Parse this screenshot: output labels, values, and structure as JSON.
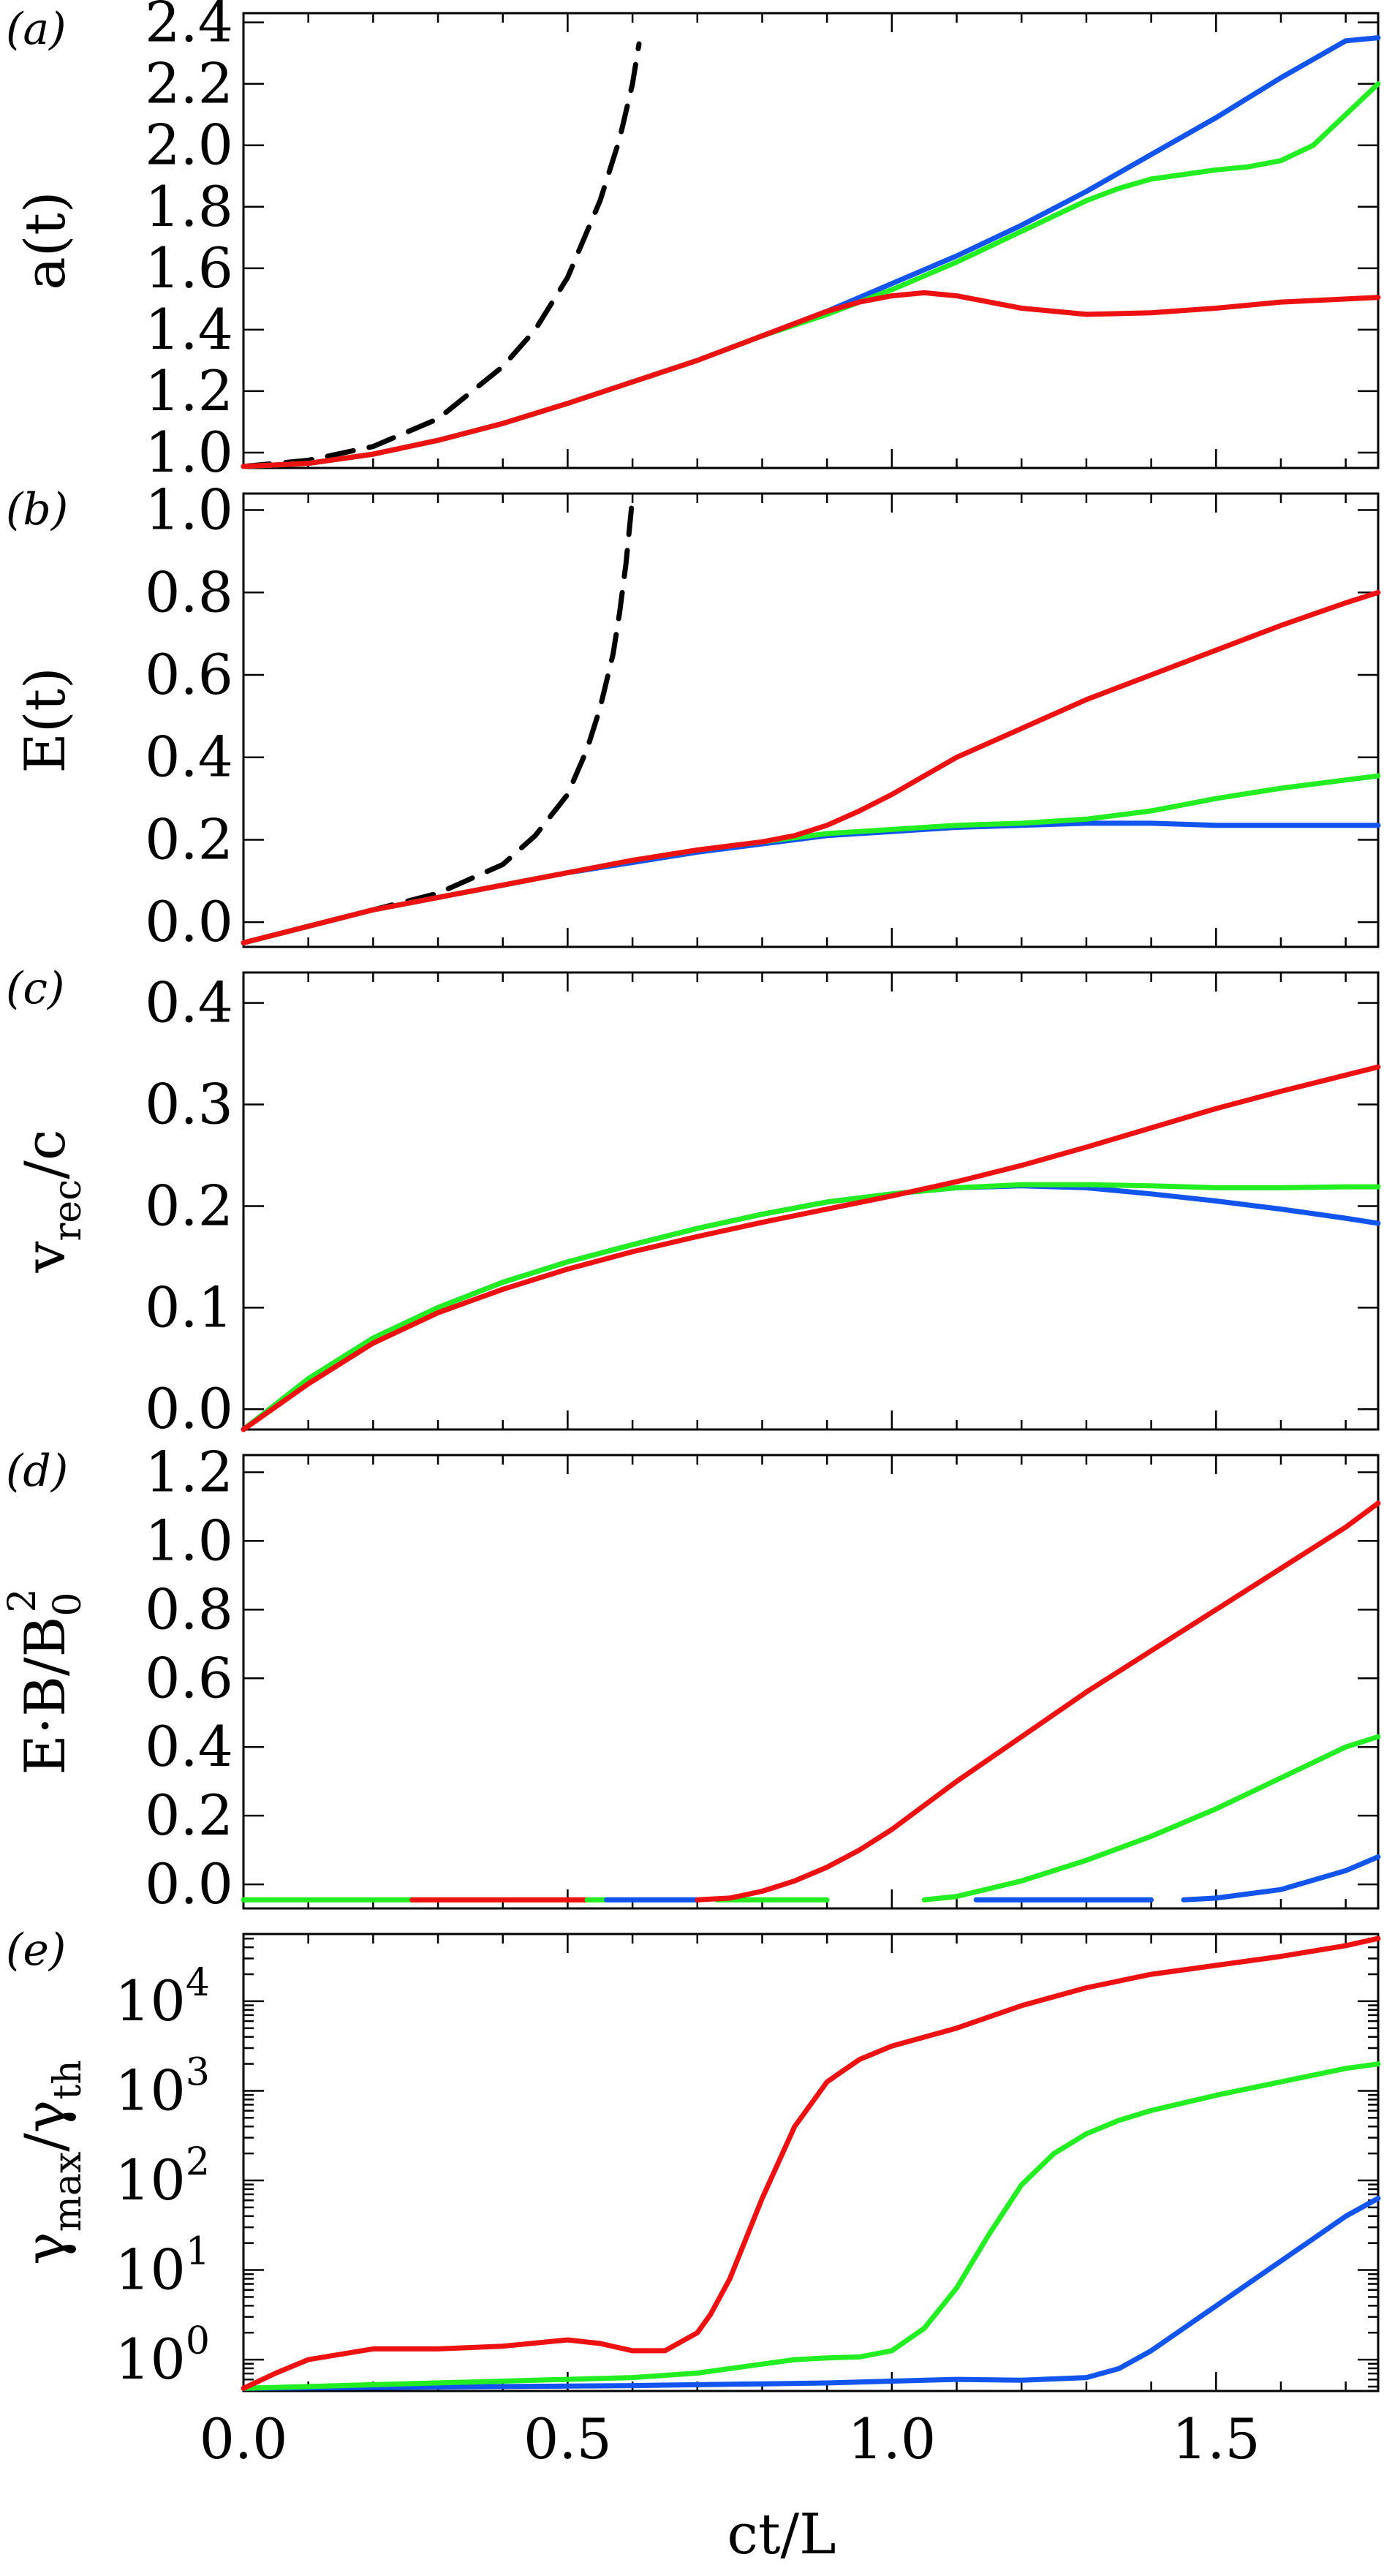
{
  "colors": {
    "red": "#ee1111",
    "green": "#22ee22",
    "blue": "#1155ee",
    "black": "#000000"
  },
  "chart_data": [
    {
      "type": "line",
      "tag": "(a)",
      "ylabel": "a(t)",
      "xlim": [
        0,
        1.75
      ],
      "ylim": [
        0.95,
        2.43
      ],
      "yticks": [
        {
          "v": 1.0,
          "l": "1.0"
        },
        {
          "v": 1.2,
          "l": "1.2"
        },
        {
          "v": 1.4,
          "l": "1.4"
        },
        {
          "v": 1.6,
          "l": "1.6"
        },
        {
          "v": 1.8,
          "l": "1.8"
        },
        {
          "v": 2.0,
          "l": "2.0"
        },
        {
          "v": 2.2,
          "l": "2.2"
        },
        {
          "v": 2.4,
          "l": "2.4"
        }
      ],
      "series": [
        {
          "color": "black",
          "dash": true,
          "x": [
            0,
            0.1,
            0.2,
            0.3,
            0.4,
            0.45,
            0.5,
            0.55,
            0.58,
            0.6,
            0.61
          ],
          "y": [
            0.955,
            0.975,
            1.02,
            1.11,
            1.28,
            1.4,
            1.57,
            1.82,
            2.02,
            2.2,
            2.33
          ]
        },
        {
          "color": "blue",
          "x": [
            0,
            0.1,
            0.2,
            0.3,
            0.4,
            0.5,
            0.6,
            0.7,
            0.8,
            0.9,
            1.0,
            1.1,
            1.2,
            1.3,
            1.4,
            1.5,
            1.6,
            1.7,
            1.75
          ],
          "y": [
            0.955,
            0.965,
            0.995,
            1.04,
            1.095,
            1.16,
            1.23,
            1.3,
            1.38,
            1.46,
            1.55,
            1.64,
            1.74,
            1.85,
            1.97,
            2.09,
            2.22,
            2.34,
            2.35
          ]
        },
        {
          "color": "green",
          "x": [
            0,
            0.1,
            0.2,
            0.3,
            0.4,
            0.5,
            0.6,
            0.7,
            0.8,
            0.9,
            1.0,
            1.1,
            1.2,
            1.3,
            1.35,
            1.4,
            1.5,
            1.55,
            1.6,
            1.65,
            1.7,
            1.75
          ],
          "y": [
            0.955,
            0.965,
            0.995,
            1.04,
            1.095,
            1.16,
            1.23,
            1.3,
            1.38,
            1.45,
            1.53,
            1.62,
            1.72,
            1.82,
            1.86,
            1.89,
            1.92,
            1.93,
            1.95,
            2.0,
            2.1,
            2.2
          ]
        },
        {
          "color": "red",
          "x": [
            0,
            0.1,
            0.2,
            0.3,
            0.4,
            0.5,
            0.6,
            0.7,
            0.8,
            0.9,
            0.95,
            1.0,
            1.05,
            1.1,
            1.2,
            1.3,
            1.4,
            1.5,
            1.6,
            1.7,
            1.75
          ],
          "y": [
            0.955,
            0.965,
            0.995,
            1.04,
            1.095,
            1.16,
            1.23,
            1.3,
            1.38,
            1.46,
            1.49,
            1.51,
            1.52,
            1.51,
            1.47,
            1.45,
            1.455,
            1.47,
            1.49,
            1.5,
            1.505
          ]
        }
      ]
    },
    {
      "type": "line",
      "tag": "(b)",
      "ylabel": "E(t)",
      "xlim": [
        0,
        1.75
      ],
      "ylim": [
        -0.06,
        1.04
      ],
      "yticks": [
        {
          "v": 0.0,
          "l": "0.0"
        },
        {
          "v": 0.2,
          "l": "0.2"
        },
        {
          "v": 0.4,
          "l": "0.4"
        },
        {
          "v": 0.6,
          "l": "0.6"
        },
        {
          "v": 0.8,
          "l": "0.8"
        },
        {
          "v": 1.0,
          "l": "1.0"
        }
      ],
      "series": [
        {
          "color": "black",
          "dash": true,
          "x": [
            0,
            0.1,
            0.2,
            0.3,
            0.4,
            0.45,
            0.5,
            0.53,
            0.55,
            0.57,
            0.58,
            0.59,
            0.6
          ],
          "y": [
            -0.05,
            -0.01,
            0.03,
            0.07,
            0.14,
            0.21,
            0.31,
            0.42,
            0.52,
            0.65,
            0.75,
            0.87,
            1.03
          ]
        },
        {
          "color": "blue",
          "x": [
            0,
            0.1,
            0.2,
            0.3,
            0.4,
            0.5,
            0.6,
            0.7,
            0.8,
            0.9,
            1.0,
            1.1,
            1.2,
            1.3,
            1.4,
            1.5,
            1.6,
            1.7,
            1.75
          ],
          "y": [
            -0.05,
            -0.01,
            0.03,
            0.06,
            0.09,
            0.12,
            0.145,
            0.17,
            0.19,
            0.21,
            0.22,
            0.23,
            0.235,
            0.24,
            0.24,
            0.235,
            0.235,
            0.235,
            0.235
          ]
        },
        {
          "color": "green",
          "x": [
            0,
            0.1,
            0.2,
            0.3,
            0.4,
            0.5,
            0.6,
            0.7,
            0.8,
            0.9,
            1.0,
            1.1,
            1.2,
            1.3,
            1.4,
            1.5,
            1.6,
            1.7,
            1.75
          ],
          "y": [
            -0.05,
            -0.01,
            0.03,
            0.06,
            0.09,
            0.12,
            0.15,
            0.175,
            0.195,
            0.215,
            0.225,
            0.235,
            0.24,
            0.25,
            0.27,
            0.3,
            0.325,
            0.345,
            0.355
          ]
        },
        {
          "color": "red",
          "x": [
            0,
            0.1,
            0.2,
            0.3,
            0.4,
            0.5,
            0.6,
            0.7,
            0.8,
            0.85,
            0.9,
            0.95,
            1.0,
            1.1,
            1.2,
            1.3,
            1.4,
            1.5,
            1.6,
            1.7,
            1.75
          ],
          "y": [
            -0.05,
            -0.01,
            0.03,
            0.06,
            0.09,
            0.12,
            0.15,
            0.175,
            0.195,
            0.21,
            0.235,
            0.27,
            0.31,
            0.4,
            0.47,
            0.54,
            0.6,
            0.66,
            0.72,
            0.775,
            0.8
          ]
        }
      ]
    },
    {
      "type": "line",
      "tag": "(c)",
      "ylabel": "v",
      "ylabel_sub": "rec",
      "ylabel_tail": "/c",
      "xlim": [
        0,
        1.75
      ],
      "ylim": [
        -0.02,
        0.43
      ],
      "yticks": [
        {
          "v": 0.0,
          "l": "0.0"
        },
        {
          "v": 0.1,
          "l": "0.1"
        },
        {
          "v": 0.2,
          "l": "0.2"
        },
        {
          "v": 0.3,
          "l": "0.3"
        },
        {
          "v": 0.4,
          "l": "0.4"
        }
      ],
      "series": [
        {
          "color": "blue",
          "x": [
            0,
            0.1,
            0.2,
            0.3,
            0.4,
            0.5,
            0.6,
            0.7,
            0.8,
            0.9,
            1.0,
            1.1,
            1.2,
            1.3,
            1.4,
            1.5,
            1.6,
            1.7,
            1.75
          ],
          "y": [
            -0.02,
            0.03,
            0.07,
            0.1,
            0.125,
            0.145,
            0.162,
            0.178,
            0.192,
            0.204,
            0.212,
            0.218,
            0.22,
            0.218,
            0.212,
            0.205,
            0.197,
            0.188,
            0.183
          ]
        },
        {
          "color": "green",
          "x": [
            0,
            0.1,
            0.2,
            0.3,
            0.4,
            0.5,
            0.6,
            0.7,
            0.8,
            0.9,
            1.0,
            1.1,
            1.2,
            1.3,
            1.4,
            1.5,
            1.6,
            1.7,
            1.75
          ],
          "y": [
            -0.02,
            0.03,
            0.07,
            0.1,
            0.125,
            0.145,
            0.162,
            0.178,
            0.192,
            0.204,
            0.212,
            0.218,
            0.221,
            0.221,
            0.22,
            0.218,
            0.218,
            0.219,
            0.219
          ]
        },
        {
          "color": "red",
          "x": [
            0,
            0.1,
            0.2,
            0.3,
            0.4,
            0.5,
            0.6,
            0.7,
            0.8,
            0.9,
            1.0,
            1.1,
            1.2,
            1.3,
            1.4,
            1.5,
            1.6,
            1.7,
            1.75
          ],
          "y": [
            -0.02,
            0.025,
            0.065,
            0.095,
            0.118,
            0.138,
            0.155,
            0.17,
            0.184,
            0.197,
            0.21,
            0.224,
            0.24,
            0.258,
            0.277,
            0.296,
            0.313,
            0.329,
            0.337
          ]
        }
      ]
    },
    {
      "type": "line",
      "tag": "(d)",
      "ylabel": "E·B/B",
      "ylabel_sub": "0",
      "ylabel_sup": "2",
      "xlim": [
        0,
        1.75
      ],
      "ylim": [
        -0.07,
        1.25
      ],
      "yticks": [
        {
          "v": 0.0,
          "l": "0.0"
        },
        {
          "v": 0.2,
          "l": "0.2"
        },
        {
          "v": 0.4,
          "l": "0.4"
        },
        {
          "v": 0.6,
          "l": "0.6"
        },
        {
          "v": 0.8,
          "l": "0.8"
        },
        {
          "v": 1.0,
          "l": "1.0"
        },
        {
          "v": 1.2,
          "l": "1.2"
        }
      ],
      "series": [
        {
          "color": "green",
          "x": [
            0,
            0.26
          ],
          "y": [
            -0.045,
            -0.045
          ]
        },
        {
          "color": "red",
          "x": [
            0.26,
            0.53
          ],
          "y": [
            -0.045,
            -0.045
          ]
        },
        {
          "color": "green",
          "x": [
            0.53,
            0.56
          ],
          "y": [
            -0.045,
            -0.045
          ]
        },
        {
          "color": "blue",
          "x": [
            0.56,
            0.7
          ],
          "y": [
            -0.045,
            -0.045
          ]
        },
        {
          "color": "green",
          "x": [
            0.73,
            0.9
          ],
          "y": [
            -0.045,
            -0.045
          ]
        },
        {
          "color": "red",
          "x": [
            0.7,
            0.75,
            0.8,
            0.85,
            0.9,
            0.95,
            1.0,
            1.05,
            1.1,
            1.2,
            1.3,
            1.4,
            1.5,
            1.6,
            1.7,
            1.75
          ],
          "y": [
            -0.045,
            -0.04,
            -0.02,
            0.01,
            0.05,
            0.1,
            0.16,
            0.23,
            0.3,
            0.43,
            0.56,
            0.68,
            0.8,
            0.92,
            1.04,
            1.11
          ]
        },
        {
          "color": "green",
          "x": [
            1.05,
            1.1,
            1.2,
            1.3,
            1.4,
            1.5,
            1.6,
            1.7,
            1.75
          ],
          "y": [
            -0.045,
            -0.035,
            0.01,
            0.07,
            0.14,
            0.22,
            0.31,
            0.4,
            0.43
          ]
        },
        {
          "color": "blue",
          "x": [
            1.13,
            1.4
          ],
          "y": [
            -0.045,
            -0.045
          ]
        },
        {
          "color": "blue",
          "x": [
            1.45,
            1.5,
            1.6,
            1.7,
            1.75
          ],
          "y": [
            -0.045,
            -0.04,
            -0.015,
            0.04,
            0.08
          ]
        }
      ]
    },
    {
      "type": "line",
      "tag": "(e)",
      "ylabel": "γ",
      "ylabel_sub": "max",
      "ylabel_tail": "/γ",
      "ylabel_sub2": "th",
      "xlim": [
        0,
        1.75
      ],
      "ylim": [
        -0.35,
        4.75
      ],
      "yscale": "log",
      "yticks": [
        {
          "v": 0,
          "l": "10",
          "e": "0"
        },
        {
          "v": 1,
          "l": "10",
          "e": "1"
        },
        {
          "v": 2,
          "l": "10",
          "e": "2"
        },
        {
          "v": 3,
          "l": "10",
          "e": "3"
        },
        {
          "v": 4,
          "l": "10",
          "e": "4"
        }
      ],
      "series": [
        {
          "color": "blue",
          "x": [
            0,
            0.2,
            0.4,
            0.6,
            0.8,
            0.9,
            1.0,
            1.1,
            1.2,
            1.3,
            1.35,
            1.4,
            1.45,
            1.5,
            1.55,
            1.6,
            1.65,
            1.7,
            1.75
          ],
          "y": [
            -0.32,
            -0.31,
            -0.3,
            -0.29,
            -0.27,
            -0.26,
            -0.24,
            -0.22,
            -0.23,
            -0.2,
            -0.1,
            0.1,
            0.35,
            0.6,
            0.85,
            1.1,
            1.35,
            1.6,
            1.8
          ]
        },
        {
          "color": "green",
          "x": [
            0,
            0.2,
            0.4,
            0.6,
            0.7,
            0.8,
            0.85,
            0.9,
            0.95,
            1.0,
            1.05,
            1.1,
            1.15,
            1.2,
            1.25,
            1.3,
            1.35,
            1.4,
            1.5,
            1.6,
            1.7,
            1.75
          ],
          "y": [
            -0.32,
            -0.28,
            -0.24,
            -0.2,
            -0.15,
            -0.05,
            0.0,
            0.02,
            0.03,
            0.1,
            0.35,
            0.8,
            1.4,
            1.95,
            2.3,
            2.52,
            2.67,
            2.78,
            2.95,
            3.1,
            3.25,
            3.3
          ]
        },
        {
          "color": "red",
          "x": [
            0,
            0.05,
            0.1,
            0.2,
            0.3,
            0.4,
            0.5,
            0.55,
            0.6,
            0.65,
            0.7,
            0.72,
            0.75,
            0.8,
            0.85,
            0.9,
            0.95,
            1.0,
            1.1,
            1.2,
            1.3,
            1.4,
            1.5,
            1.6,
            1.7,
            1.75
          ],
          "y": [
            -0.32,
            -0.15,
            0.0,
            0.12,
            0.12,
            0.15,
            0.22,
            0.18,
            0.1,
            0.1,
            0.3,
            0.5,
            0.9,
            1.8,
            2.6,
            3.1,
            3.35,
            3.5,
            3.7,
            3.95,
            4.15,
            4.3,
            4.4,
            4.5,
            4.62,
            4.7
          ]
        }
      ]
    }
  ],
  "xaxis": {
    "label": "ct/L",
    "ticks": [
      {
        "v": 0.0,
        "l": "0.0"
      },
      {
        "v": 0.5,
        "l": "0.5"
      },
      {
        "v": 1.0,
        "l": "1.0"
      },
      {
        "v": 1.5,
        "l": "1.5"
      }
    ]
  }
}
